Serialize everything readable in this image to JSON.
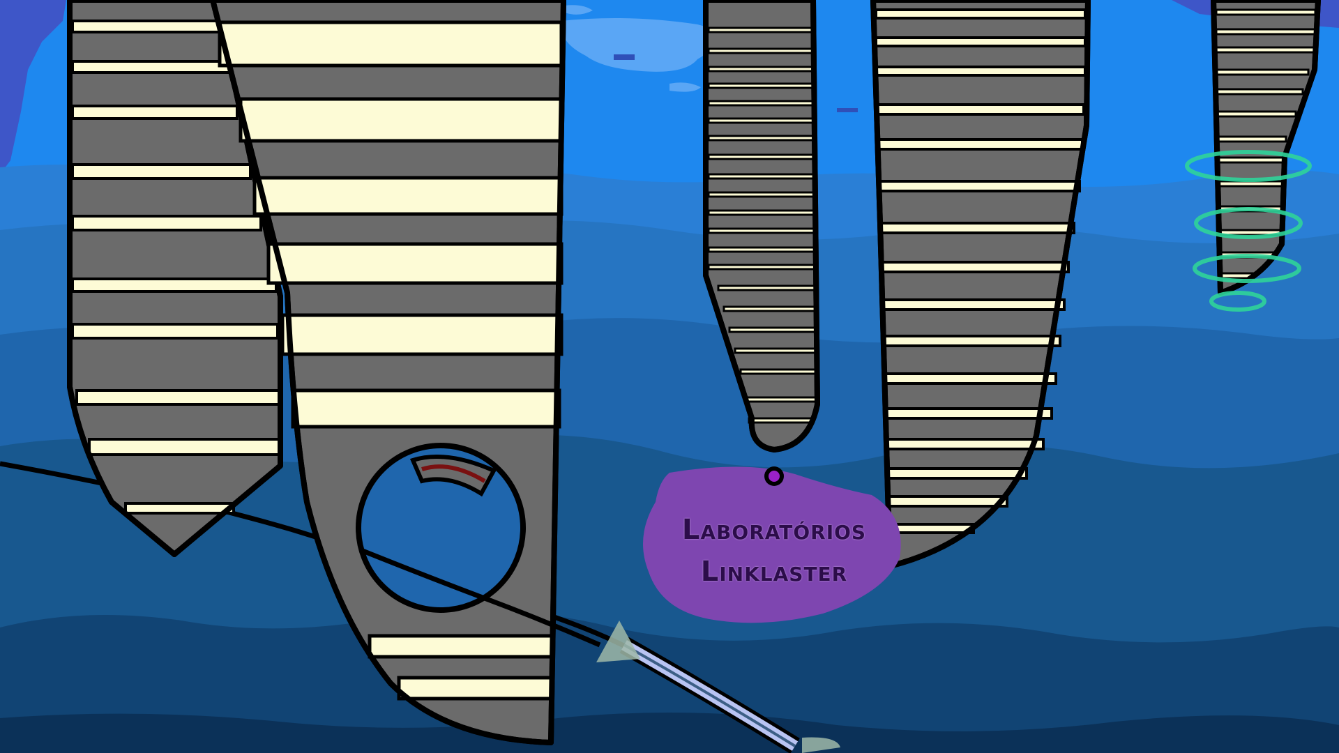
{
  "scene": {
    "location_sign": {
      "line1": "Laboratórios",
      "line2": "Linklaster"
    }
  },
  "colors": {
    "sky": "#1e88ef",
    "water_layers": [
      "#2a7fd6",
      "#2675c2",
      "#1f66ad",
      "#18588f",
      "#114474",
      "#0b3158"
    ],
    "tower_body": "#6b6b6b",
    "tower_stripe": "#fdfbd6",
    "outline": "#000000",
    "sign_fill": "#7e46b0",
    "sign_text": "#2c0d4a",
    "portal_rings": "#2fd49a",
    "cloud": "#5aa6f5",
    "gauge_red": "#7a1010",
    "node_purple": "#9a21c9"
  },
  "icons": {
    "marker": "purple-node-icon",
    "gauge": "gauge-ring-icon",
    "portal": "portal-rings-icon"
  }
}
